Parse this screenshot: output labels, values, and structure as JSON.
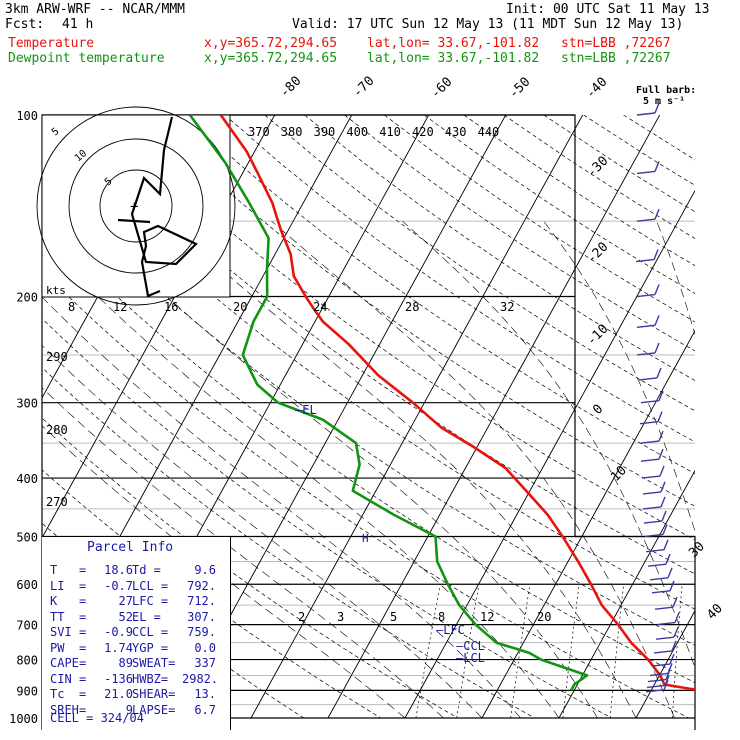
{
  "header": {
    "title_left": "3km ARW-WRF -- NCAR/MMM",
    "init": "Init: 00 UTC Sat 11 May 13",
    "fcst_label": "Fcst:",
    "fcst_value": "41 h",
    "valid": "Valid: 17 UTC Sun 12 May 13 (11 MDT Sun 12 May 13)",
    "temp_label": "Temperature",
    "dew_label": "Dewpoint temperature",
    "xy": "x,y=365.72,294.65",
    "latlon": "lat,lon= 33.67,-101.82",
    "stn": "stn=LBB ,72267",
    "barb_legend_1": "Full barb:",
    "barb_legend_2": "5 m s⁻¹"
  },
  "chart_data": {
    "type": "line",
    "diagram": "skew-T log-p",
    "y_axis": {
      "unit": "hPa",
      "scale": "log",
      "range": [
        1000,
        100
      ],
      "ticks": [
        100,
        200,
        300,
        400,
        500,
        600,
        700,
        800,
        900,
        1000
      ]
    },
    "x_axis": {
      "unit": "°C",
      "range": [
        -40,
        40
      ],
      "labels_visible": [
        -80,
        -70,
        -60,
        -50,
        -40,
        -30,
        -20,
        -10,
        0,
        10,
        20,
        30,
        40
      ]
    },
    "theta_labels": [
      "370",
      "380",
      "390",
      "400",
      "410",
      "420",
      "430",
      "440"
    ],
    "height_labels": [
      {
        "hPa": 290,
        "label": "290"
      },
      {
        "hPa": 280,
        "label": "280"
      },
      {
        "hPa": 270,
        "label": "270"
      }
    ],
    "mixing_ratio_labels": [
      "2",
      "3",
      "5",
      "8",
      "12",
      "20"
    ],
    "series": [
      {
        "name": "Temperature",
        "color": "#e8140c",
        "points": [
          [
            910,
            31.5
          ],
          [
            895,
            25
          ],
          [
            880,
            21.3
          ],
          [
            850,
            20.1
          ],
          [
            800,
            17.4
          ],
          [
            750,
            14
          ],
          [
            700,
            11
          ],
          [
            650,
            7.5
          ],
          [
            600,
            4.6
          ],
          [
            550,
            1.3
          ],
          [
            500,
            -2.5
          ],
          [
            460,
            -6
          ],
          [
            420,
            -10.5
          ],
          [
            385,
            -14.8
          ],
          [
            355,
            -20.5
          ],
          [
            330,
            -26
          ],
          [
            300,
            -31.5
          ],
          [
            270,
            -38
          ],
          [
            240,
            -44
          ],
          [
            220,
            -49
          ],
          [
            210,
            -51
          ],
          [
            200,
            -53
          ],
          [
            185,
            -56
          ],
          [
            170,
            -58
          ],
          [
            155,
            -61
          ],
          [
            140,
            -64
          ],
          [
            125,
            -68
          ],
          [
            115,
            -71
          ],
          [
            100,
            -77
          ]
        ]
      },
      {
        "name": "Dewpoint temperature",
        "color": "#119411",
        "points": [
          [
            900,
            9.6
          ],
          [
            880,
            9.6
          ],
          [
            850,
            10.6
          ],
          [
            800,
            3.5
          ],
          [
            780,
            1.5
          ],
          [
            750,
            -3.5
          ],
          [
            700,
            -7.5
          ],
          [
            650,
            -11
          ],
          [
            600,
            -14
          ],
          [
            550,
            -17
          ],
          [
            500,
            -19
          ],
          [
            460,
            -26
          ],
          [
            420,
            -33
          ],
          [
            380,
            -34
          ],
          [
            350,
            -36
          ],
          [
            320,
            -42
          ],
          [
            300,
            -49
          ],
          [
            280,
            -53
          ],
          [
            250,
            -57
          ],
          [
            220,
            -58
          ],
          [
            200,
            -58
          ],
          [
            180,
            -60
          ],
          [
            160,
            -62
          ],
          [
            140,
            -67
          ],
          [
            120,
            -73
          ],
          [
            100,
            -81
          ]
        ]
      }
    ],
    "annotations": [
      {
        "text": "EL",
        "hPa": 307
      },
      {
        "text": "LFC",
        "hPa": 712
      },
      {
        "text": "CCL",
        "hPa": 759
      },
      {
        "text": "LCL",
        "hPa": 792
      }
    ]
  },
  "hodograph": {
    "unit_label": "kts",
    "ring_labels": [
      "5",
      "10",
      "5"
    ],
    "speed_ticks": [
      "8",
      "12",
      "16",
      "20",
      "24",
      "28",
      "32"
    ]
  },
  "parcel_info": {
    "title": "Parcel Info",
    "rows": [
      [
        "T",
        "=",
        "18.6",
        "Td =",
        "9.6"
      ],
      [
        "LI",
        "=",
        "-0.7",
        "LCL =",
        "792."
      ],
      [
        "K",
        "=",
        "27",
        "LFC =",
        "712."
      ],
      [
        "TT",
        "=",
        "52",
        "EL =",
        "307."
      ],
      [
        "SVI",
        "=",
        "-0.9",
        "CCL =",
        "759."
      ],
      [
        "PW",
        "=",
        "1.74",
        "YGP =",
        "0.0"
      ],
      [
        "CAPE",
        "=",
        "89",
        "SWEAT=",
        "337"
      ],
      [
        "CIN",
        "=",
        "-136",
        "HWBZ=",
        "2982."
      ],
      [
        "Tc",
        "=",
        "21.0",
        "SHEAR=",
        "13."
      ],
      [
        "SREH",
        "=",
        "9",
        "LAPSE=",
        "6.7"
      ]
    ],
    "cell": "CELL = 324/04"
  },
  "colors": {
    "temperature": "#e8140c",
    "dewpoint": "#119411",
    "parcel": "#1a1aa8",
    "barbs": "#3a3aa0"
  }
}
